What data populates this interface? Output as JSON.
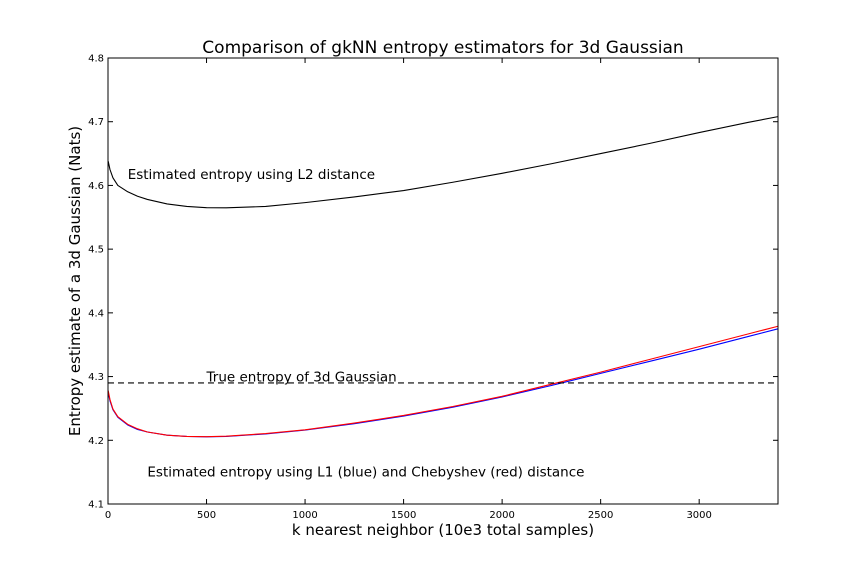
{
  "chart_data": {
    "type": "line",
    "title": "Comparison of gkNN entropy estimators for 3d Gaussian",
    "xlabel": "k nearest neighbor (10e3 total samples)",
    "ylabel": "Entropy estimate of a 3d Gaussian (Nats)",
    "xlim": [
      0,
      3400
    ],
    "ylim": [
      4.1,
      4.8
    ],
    "xticks": [
      0,
      500,
      1000,
      1500,
      2000,
      2500,
      3000
    ],
    "yticks": [
      4.1,
      4.2,
      4.3,
      4.4,
      4.5,
      4.6,
      4.7,
      4.8
    ],
    "grid": false,
    "series": [
      {
        "color": "#000000",
        "dash": "solid",
        "x": [
          1,
          10,
          25,
          50,
          100,
          150,
          200,
          300,
          400,
          500,
          600,
          800,
          1000,
          1250,
          1500,
          1750,
          2000,
          2250,
          2500,
          2750,
          3000,
          3250,
          3400
        ],
        "y": [
          4.638,
          4.625,
          4.612,
          4.6,
          4.59,
          4.583,
          4.578,
          4.571,
          4.567,
          4.565,
          4.5648,
          4.567,
          4.573,
          4.582,
          4.592,
          4.605,
          4.619,
          4.634,
          4.65,
          4.666,
          4.683,
          4.699,
          4.708
        ]
      },
      {
        "color": "#0000ff",
        "dash": "solid",
        "x": [
          1,
          10,
          25,
          50,
          100,
          150,
          200,
          300,
          400,
          500,
          600,
          800,
          1000,
          1250,
          1500,
          1750,
          2000,
          2250,
          2500,
          2750,
          3000,
          3250,
          3400
        ],
        "y": [
          4.275,
          4.262,
          4.248,
          4.236,
          4.224,
          4.217,
          4.213,
          4.208,
          4.206,
          4.2055,
          4.206,
          4.21,
          4.216,
          4.226,
          4.238,
          4.252,
          4.268,
          4.286,
          4.305,
          4.324,
          4.343,
          4.363,
          4.375
        ]
      },
      {
        "color": "#ff0000",
        "dash": "solid",
        "x": [
          1,
          10,
          25,
          50,
          100,
          150,
          200,
          300,
          400,
          500,
          600,
          800,
          1000,
          1250,
          1500,
          1750,
          2000,
          2250,
          2500,
          2750,
          3000,
          3250,
          3400
        ],
        "y": [
          4.278,
          4.264,
          4.249,
          4.237,
          4.225,
          4.218,
          4.213,
          4.208,
          4.206,
          4.2057,
          4.2065,
          4.2105,
          4.2165,
          4.227,
          4.239,
          4.253,
          4.269,
          4.288,
          4.307,
          4.327,
          4.347,
          4.367,
          4.379
        ]
      },
      {
        "color": "#000000",
        "dash": "dashed",
        "x": [
          0,
          3400
        ],
        "y": [
          4.29,
          4.29
        ]
      }
    ],
    "annotations": [
      {
        "text": "Estimated entropy using L2 distance",
        "x": 100,
        "y": 4.618
      },
      {
        "text": "True entropy of 3d Gaussian",
        "x": 500,
        "y": 4.3
      },
      {
        "text": "Estimated entropy using L1 (blue) and Chebyshev (red) distance",
        "x": 200,
        "y": 4.151
      }
    ]
  }
}
